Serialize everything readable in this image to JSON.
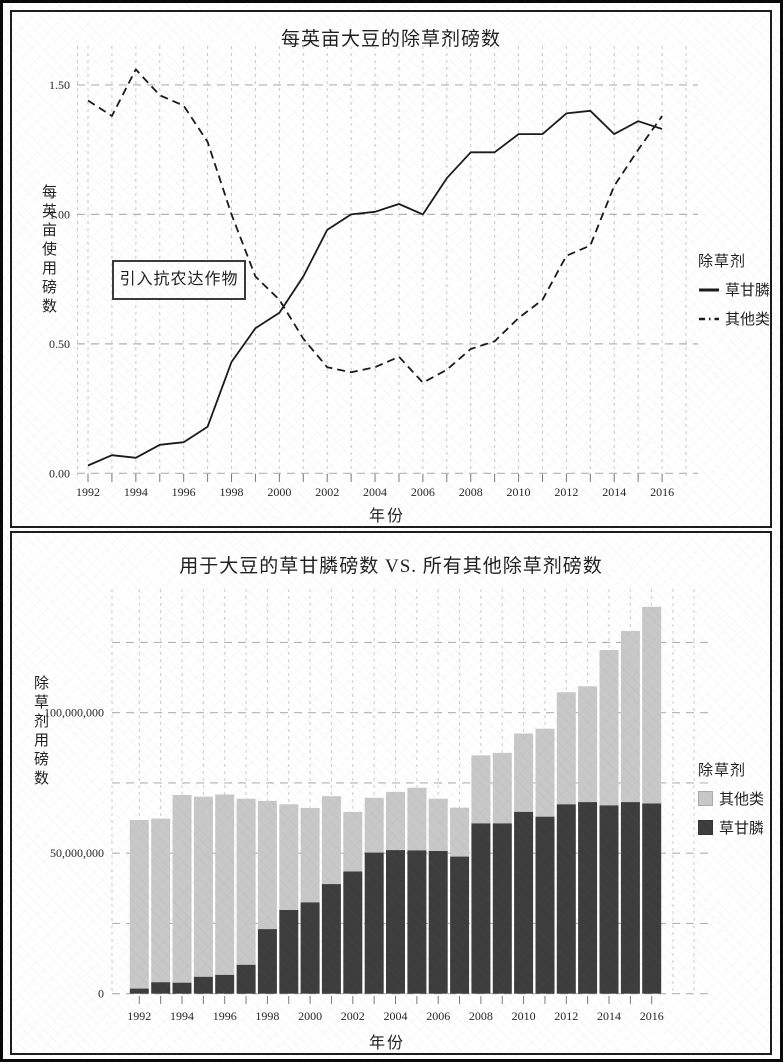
{
  "chart_data": [
    {
      "type": "line",
      "title": "每英亩大豆的除草剂磅数",
      "xlabel": "年份",
      "ylabel": "每英亩使用磅数",
      "legend_title": "除草剂",
      "legend_position": "right",
      "grid": true,
      "x": [
        1992,
        1993,
        1994,
        1995,
        1996,
        1997,
        1998,
        1999,
        2000,
        2001,
        2002,
        2003,
        2004,
        2005,
        2006,
        2007,
        2008,
        2009,
        2010,
        2011,
        2012,
        2013,
        2014,
        2015,
        2016
      ],
      "x_tick_labels": [
        "1992",
        "1994",
        "1996",
        "1998",
        "2000",
        "2002",
        "2004",
        "2006",
        "2008",
        "2010",
        "2012",
        "2014",
        "2016"
      ],
      "y_ticks": [
        0,
        0.5,
        1,
        1.5
      ],
      "y_tick_labels": [
        "0.00",
        "0.50",
        "1.00",
        "1.50"
      ],
      "ylim": [
        -0.05,
        1.65
      ],
      "series": [
        {
          "name": "草甘膦",
          "style": "solid",
          "color": "#1a1a1a",
          "values": [
            0.03,
            0.07,
            0.06,
            0.11,
            0.12,
            0.18,
            0.43,
            0.56,
            0.62,
            0.76,
            0.94,
            1.0,
            1.01,
            1.04,
            1.0,
            1.14,
            1.24,
            1.24,
            1.31,
            1.31,
            1.39,
            1.4,
            1.31,
            1.36,
            1.33
          ]
        },
        {
          "name": "其他类",
          "style": "dashed",
          "color": "#1a1a1a",
          "values": [
            1.44,
            1.38,
            1.56,
            1.46,
            1.42,
            1.28,
            1.0,
            0.76,
            0.67,
            0.52,
            0.41,
            0.39,
            0.41,
            0.45,
            0.35,
            0.4,
            0.48,
            0.51,
            0.6,
            0.67,
            0.84,
            0.88,
            1.11,
            1.25,
            1.38
          ]
        }
      ],
      "annotation": {
        "text": "引入抗农达作物",
        "near_x": 1996,
        "near_y": 0.75
      }
    },
    {
      "type": "bar",
      "stacked": true,
      "title": "用于大豆的草甘膦磅数 VS. 所有其他除草剂磅数",
      "xlabel": "年份",
      "ylabel": "除草剂用磅数",
      "legend_title": "除草剂",
      "legend_position": "right",
      "grid": true,
      "x": [
        1992,
        1993,
        1994,
        1995,
        1996,
        1997,
        1998,
        1999,
        2000,
        2001,
        2002,
        2003,
        2004,
        2005,
        2006,
        2007,
        2008,
        2009,
        2010,
        2011,
        2012,
        2013,
        2014,
        2015,
        2016
      ],
      "x_tick_labels": [
        "1992",
        "1994",
        "1996",
        "1998",
        "2000",
        "2002",
        "2004",
        "2006",
        "2008",
        "2010",
        "2012",
        "2014",
        "2016"
      ],
      "y_ticks": [
        0,
        50000000,
        100000000
      ],
      "y_tick_labels": [
        "0",
        "50,000,000",
        "100,000,000"
      ],
      "grid_step": 25000000,
      "ylim": [
        0,
        143000000
      ],
      "series": [
        {
          "name": "草甘膦",
          "stack_position": "bottom",
          "color": "#3d3d3d",
          "values": [
            1800000,
            4100000,
            3900000,
            6000000,
            6700000,
            10300000,
            23000000,
            29800000,
            32500000,
            39000000,
            43500000,
            50200000,
            51100000,
            51000000,
            50800000,
            48800000,
            60600000,
            60600000,
            64700000,
            63000000,
            67400000,
            68200000,
            67000000,
            68200000,
            67700000
          ]
        },
        {
          "name": "其他类",
          "stack_position": "top",
          "color": "#c8c8c8",
          "values": [
            60000000,
            58200000,
            66800000,
            64100000,
            64200000,
            59100000,
            45600000,
            37600000,
            33600000,
            31300000,
            21200000,
            19500000,
            20700000,
            22300000,
            18600000,
            17400000,
            24200000,
            25100000,
            27900000,
            31300000,
            39900000,
            41200000,
            55300000,
            60900000,
            70000000
          ]
        }
      ],
      "legend_items": [
        "其他类",
        "草甘膦"
      ]
    }
  ]
}
